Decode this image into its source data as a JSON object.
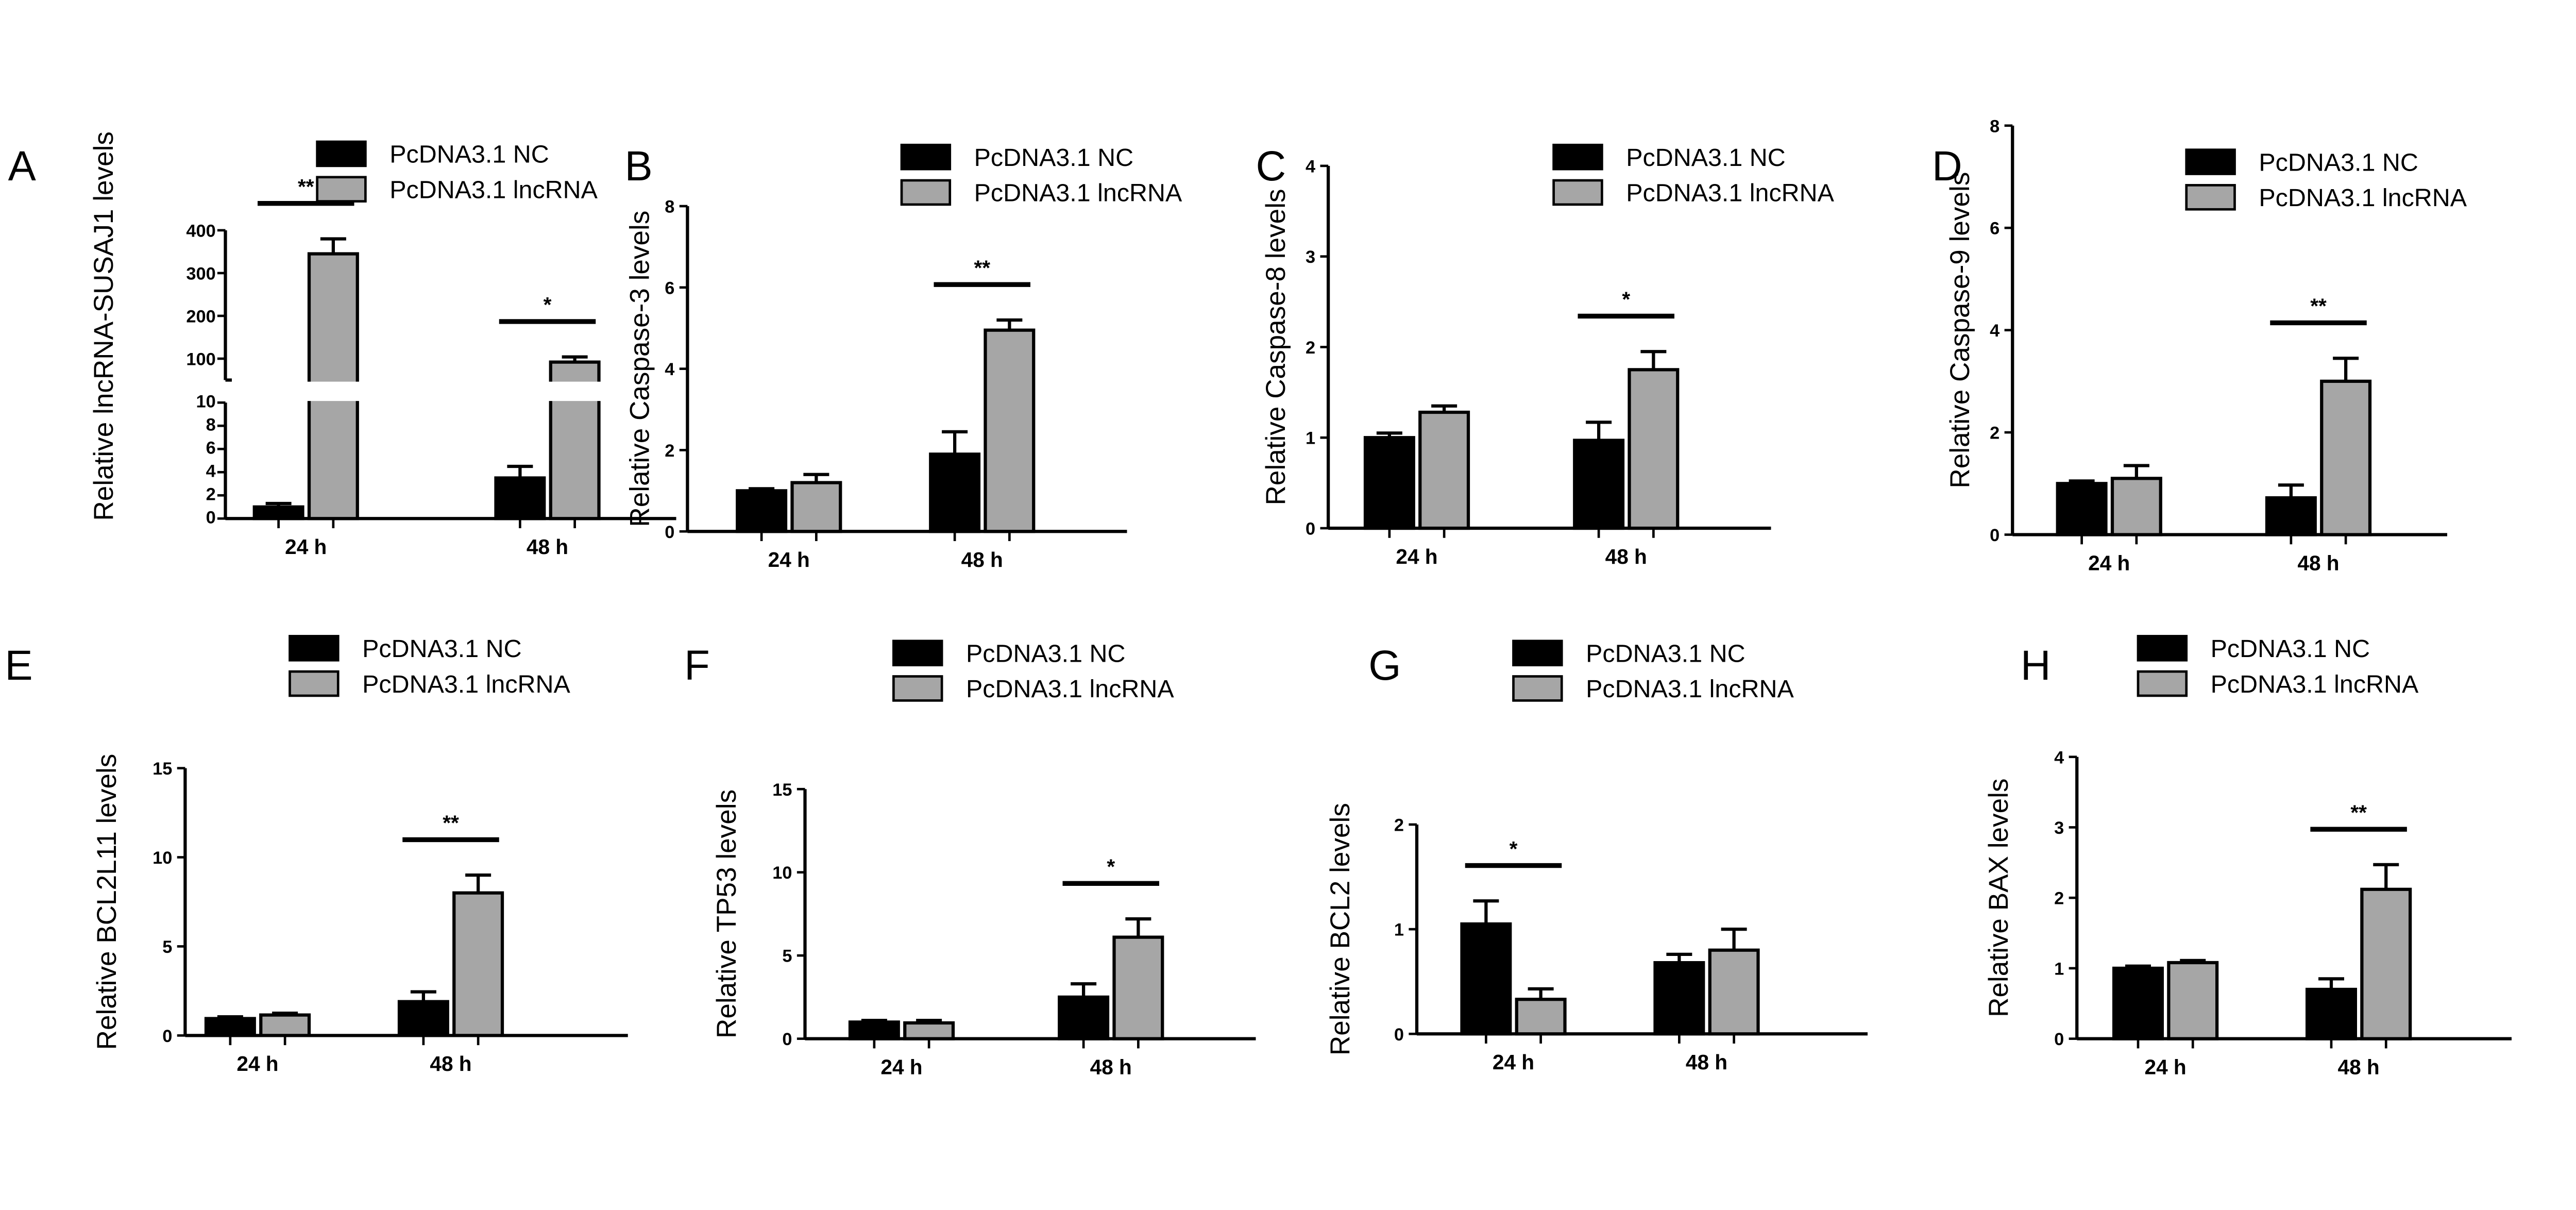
{
  "colors": {
    "nc": "#000000",
    "lnc": "#a6a6a6",
    "axis": "#000000"
  },
  "legend": [
    "PcDNA3.1 NC",
    "PcDNA3.1 lncRNA"
  ],
  "chart_data": [
    {
      "panel": "A",
      "type": "bar",
      "ylabel": "Relative lncRNA-SUSAJ1  levels",
      "categories": [
        "24 h",
        "48 h"
      ],
      "y_axis": "broken",
      "ylim_lower": [
        0,
        10
      ],
      "ylim_upper": [
        50,
        400
      ],
      "yticks_lower": [
        0,
        2,
        4,
        6,
        8,
        10
      ],
      "yticks_upper": [
        100,
        200,
        300,
        400
      ],
      "series": [
        {
          "name": "PcDNA3.1 NC",
          "values": [
            1,
            3.5
          ],
          "errors": [
            0.3,
            1
          ]
        },
        {
          "name": "PcDNA3.1 lncRNA",
          "values": [
            345,
            92
          ],
          "errors": [
            35,
            12
          ]
        }
      ],
      "significance": [
        "**",
        "*"
      ]
    },
    {
      "panel": "B",
      "type": "bar",
      "ylabel": "Relative Caspase-3  levels",
      "categories": [
        "24 h",
        "48 h"
      ],
      "ylim": [
        0,
        8
      ],
      "yticks": [
        0,
        2,
        4,
        6,
        8
      ],
      "series": [
        {
          "name": "PcDNA3.1 NC",
          "values": [
            1.0,
            1.9
          ],
          "errors": [
            0.05,
            0.55
          ]
        },
        {
          "name": "PcDNA3.1 lncRNA",
          "values": [
            1.2,
            4.95
          ],
          "errors": [
            0.2,
            0.25
          ]
        }
      ],
      "significance": [
        "",
        "**"
      ]
    },
    {
      "panel": "C",
      "type": "bar",
      "ylabel": "Relative Caspase-8 levels",
      "categories": [
        "24 h",
        "48 h"
      ],
      "ylim": [
        0,
        4
      ],
      "yticks": [
        0,
        1,
        2,
        3,
        4
      ],
      "series": [
        {
          "name": "PcDNA3.1 NC",
          "values": [
            1.0,
            0.97
          ],
          "errors": [
            0.05,
            0.2
          ]
        },
        {
          "name": "PcDNA3.1 lncRNA",
          "values": [
            1.28,
            1.75
          ],
          "errors": [
            0.07,
            0.2
          ]
        }
      ],
      "significance": [
        "",
        "*"
      ]
    },
    {
      "panel": "D",
      "type": "bar",
      "ylabel": "Relative Caspase-9 levels",
      "categories": [
        "24 h",
        "48 h"
      ],
      "ylim": [
        0,
        8
      ],
      "yticks": [
        0,
        2,
        4,
        6,
        8
      ],
      "series": [
        {
          "name": "PcDNA3.1 NC",
          "values": [
            1.0,
            0.72
          ],
          "errors": [
            0.05,
            0.25
          ]
        },
        {
          "name": "PcDNA3.1 lncRNA",
          "values": [
            1.1,
            3.0
          ],
          "errors": [
            0.25,
            0.45
          ]
        }
      ],
      "significance": [
        "",
        "**"
      ]
    },
    {
      "panel": "E",
      "type": "bar",
      "ylabel": "Relative BCL2L11 levels",
      "categories": [
        "24 h",
        "48 h"
      ],
      "ylim": [
        0,
        15
      ],
      "yticks": [
        0,
        5,
        10,
        15
      ],
      "series": [
        {
          "name": "PcDNA3.1 NC",
          "values": [
            0.95,
            1.9
          ],
          "errors": [
            0.1,
            0.55
          ]
        },
        {
          "name": "PcDNA3.1 lncRNA",
          "values": [
            1.15,
            8.0
          ],
          "errors": [
            0.1,
            1.0
          ]
        }
      ],
      "significance": [
        "",
        "**"
      ]
    },
    {
      "panel": "F",
      "type": "bar",
      "ylabel": "Relative TP53 levels",
      "categories": [
        "24 h",
        "48 h"
      ],
      "ylim": [
        0,
        15
      ],
      "yticks": [
        0,
        5,
        10,
        15
      ],
      "series": [
        {
          "name": "PcDNA3.1 NC",
          "values": [
            1.0,
            2.5
          ],
          "errors": [
            0.1,
            0.8
          ]
        },
        {
          "name": "PcDNA3.1 lncRNA",
          "values": [
            0.95,
            6.1
          ],
          "errors": [
            0.15,
            1.1
          ]
        }
      ],
      "significance": [
        "",
        "*"
      ]
    },
    {
      "panel": "G",
      "type": "bar",
      "ylabel": "Relative BCL2  levels",
      "categories": [
        "24 h",
        "48 h"
      ],
      "ylim": [
        0,
        2
      ],
      "yticks": [
        0,
        1,
        2
      ],
      "series": [
        {
          "name": "PcDNA3.1 NC",
          "values": [
            1.05,
            0.68
          ],
          "errors": [
            0.22,
            0.08
          ]
        },
        {
          "name": "PcDNA3.1 lncRNA",
          "values": [
            0.33,
            0.8
          ],
          "errors": [
            0.1,
            0.2
          ]
        }
      ],
      "significance": [
        "*",
        ""
      ]
    },
    {
      "panel": "H",
      "type": "bar",
      "ylabel": "Relative BAX  levels",
      "categories": [
        "24 h",
        "48 h"
      ],
      "ylim": [
        0,
        4
      ],
      "yticks": [
        0,
        1,
        2,
        3,
        4
      ],
      "series": [
        {
          "name": "PcDNA3.1 NC",
          "values": [
            1.0,
            0.7
          ],
          "errors": [
            0.03,
            0.15
          ]
        },
        {
          "name": "PcDNA3.1 lncRNA",
          "values": [
            1.08,
            2.12
          ],
          "errors": [
            0.03,
            0.35
          ]
        }
      ],
      "significance": [
        "",
        "**"
      ]
    }
  ]
}
